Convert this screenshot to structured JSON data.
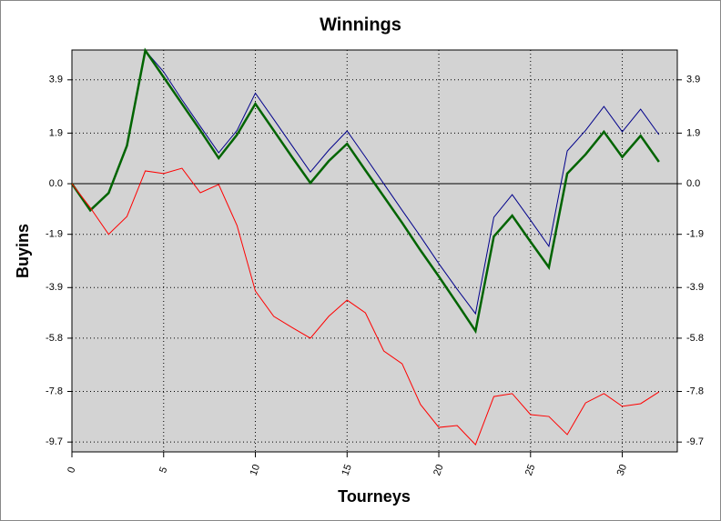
{
  "chart_data": {
    "type": "line",
    "title": "Winnings",
    "x_label": "Tourneys",
    "y_label": "Buyins",
    "x": [
      0,
      1,
      2,
      3,
      4,
      5,
      6,
      7,
      8,
      9,
      10,
      11,
      12,
      13,
      14,
      15,
      16,
      17,
      18,
      19,
      20,
      21,
      22,
      23,
      24,
      25,
      26,
      27,
      28,
      29,
      30,
      31,
      32
    ],
    "series": [
      {
        "color": "#00008b",
        "values": [
          0,
          -1.0,
          -0.35,
          1.43,
          5.0,
          4.2,
          3.15,
          2.15,
          1.16,
          2.0,
          3.4,
          2.42,
          1.43,
          0.44,
          1.26,
          1.98,
          1.0,
          0,
          -1.0,
          -1.98,
          -3.0,
          -3.96,
          -4.88,
          -1.26,
          -0.41,
          -1.37,
          -2.35,
          1.23,
          2.0,
          2.9,
          1.95,
          2.8,
          1.84
        ]
      },
      {
        "color": "#006400",
        "values": [
          0,
          -1.0,
          -0.35,
          1.43,
          5.0,
          4.0,
          3.0,
          2.0,
          0.96,
          1.84,
          3.0,
          2.0,
          1.0,
          0.03,
          0.85,
          1.5,
          0.5,
          -0.48,
          -1.47,
          -2.5,
          -3.48,
          -4.5,
          -5.53,
          -1.98,
          -1.2,
          -2.18,
          -3.14,
          0.38,
          1.1,
          1.95,
          1.0,
          1.8,
          0.82
        ]
      },
      {
        "color": "#ff0000",
        "values": [
          0,
          -0.9,
          -1.9,
          -1.23,
          0.48,
          0.38,
          0.58,
          -0.34,
          -0.03,
          -1.57,
          -4.03,
          -4.98,
          -5.4,
          -5.8,
          -4.98,
          -4.37,
          -4.85,
          -6.28,
          -6.76,
          -8.29,
          -9.15,
          -9.08,
          -9.8,
          -7.99,
          -7.88,
          -8.67,
          -8.74,
          -9.42,
          -8.23,
          -7.88,
          -8.36,
          -8.26,
          -7.82
        ]
      }
    ],
    "xlim": [
      0,
      33
    ],
    "xticks": [
      0,
      5,
      10,
      15,
      20,
      25,
      30
    ],
    "ylim": [
      -10.07,
      5.02
    ],
    "yticks": [
      -9.7,
      -7.8,
      -5.8,
      -3.9,
      -1.9,
      {
        "value": 0,
        "label": "0.0"
      },
      1.9,
      3.9
    ],
    "grid": true
  }
}
